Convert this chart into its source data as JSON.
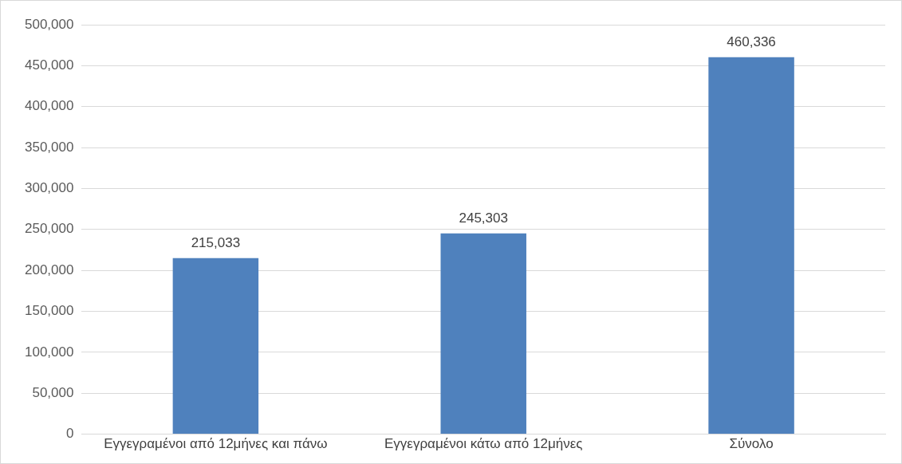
{
  "chart_data": {
    "type": "bar",
    "categories": [
      "Εγγεγραμένοι από 12μήνες και πάνω",
      "Εγγεγραμένοι κάτω από 12μήνες",
      "Σύνολο"
    ],
    "values": [
      215033,
      245303,
      460336
    ],
    "value_labels": [
      "215,033",
      "245,303",
      "460,336"
    ],
    "color": "#4f81bd",
    "ylim": [
      0,
      500000
    ],
    "yticks": [
      {
        "value": 0,
        "label": "0"
      },
      {
        "value": 50000,
        "label": "50,000"
      },
      {
        "value": 100000,
        "label": "100,000"
      },
      {
        "value": 150000,
        "label": "150,000"
      },
      {
        "value": 200000,
        "label": "200,000"
      },
      {
        "value": 250000,
        "label": "250,000"
      },
      {
        "value": 300000,
        "label": "300,000"
      },
      {
        "value": 350000,
        "label": "350,000"
      },
      {
        "value": 400000,
        "label": "400,000"
      },
      {
        "value": 450000,
        "label": "450,000"
      },
      {
        "value": 500000,
        "label": "500,000"
      }
    ],
    "grid": "y",
    "legend": false
  }
}
